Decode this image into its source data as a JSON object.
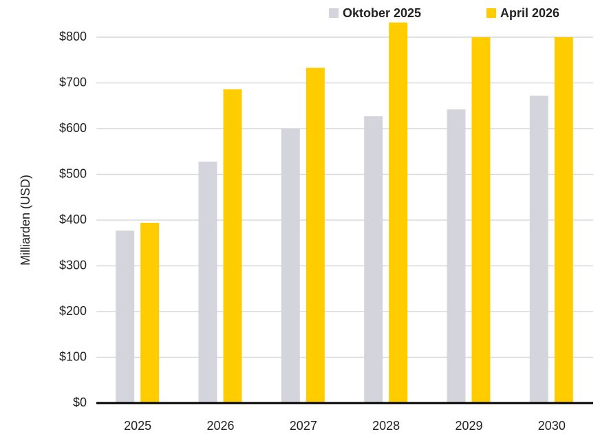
{
  "chart_data": {
    "type": "bar",
    "categories": [
      "2025",
      "2026",
      "2027",
      "2028",
      "2029",
      "2030"
    ],
    "series": [
      {
        "name": "Oktober 2025",
        "color": "#d4d4dc",
        "values": [
          377,
          528,
          600,
          627,
          642,
          672
        ]
      },
      {
        "name": "April 2026",
        "color": "#ffcc00",
        "values": [
          394,
          686,
          733,
          832,
          800,
          800
        ]
      }
    ],
    "y_label": "Milliarden  (USD)",
    "ylim": [
      0,
      832
    ],
    "yticks": [
      {
        "value": 0,
        "label": "$0"
      },
      {
        "value": 100,
        "label": "$100"
      },
      {
        "value": 200,
        "label": "$200"
      },
      {
        "value": 300,
        "label": "$300"
      },
      {
        "value": 400,
        "label": "$400"
      },
      {
        "value": 500,
        "label": "$500"
      },
      {
        "value": 600,
        "label": "$600"
      },
      {
        "value": 700,
        "label": "$700"
      },
      {
        "value": 800,
        "label": "$800"
      }
    ],
    "grid": true,
    "legend": "top"
  }
}
